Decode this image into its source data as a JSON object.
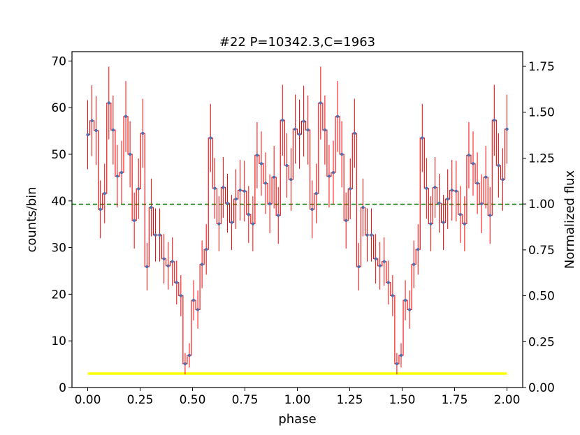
{
  "chart_data": {
    "type": "line",
    "title": "#22 P=10342.3,C=1963",
    "xlabel": "phase",
    "ylabel": "counts/bin",
    "y2label": "Normalized flux",
    "xlim": [
      -0.075,
      2.075
    ],
    "ylim": [
      0,
      72
    ],
    "y2lim": [
      0,
      1.83
    ],
    "xticks": [
      "0.00",
      "0.25",
      "0.50",
      "0.75",
      "1.00",
      "1.25",
      "1.50",
      "1.75",
      "2.00"
    ],
    "yticks": [
      "0",
      "10",
      "20",
      "30",
      "40",
      "50",
      "60",
      "70"
    ],
    "y2ticks": [
      "0.00",
      "0.25",
      "0.50",
      "0.75",
      "1.00",
      "1.25",
      "1.50",
      "1.75"
    ],
    "grid": false,
    "legend": "none",
    "mean_level": 39.3,
    "background_level": 3.0,
    "colors": {
      "step": "#ff0000",
      "errorbar": "#ff0000",
      "points": "#4c72b0",
      "mean_line": "#008000",
      "background_line": "#ffff00"
    },
    "series": [
      {
        "values": [
          54.2,
          57.2,
          55.1,
          38.2,
          41.6,
          61.0,
          55.2,
          45.3,
          46.1,
          58.1,
          50.0,
          35.8,
          42.6,
          54.5,
          25.9,
          38.6,
          32.7,
          32.7,
          27.6,
          26.1,
          27.0,
          22.5,
          19.7,
          5.1,
          6.9,
          18.7,
          16.7,
          26.4,
          29.6,
          53.5,
          42.7,
          35.1,
          42.9,
          39.5,
          35.4,
          40.4,
          42.3,
          42.1,
          37.1,
          35.1,
          49.8,
          48.0,
          43.8,
          39.4,
          45.1,
          36.9,
          57.3,
          47.6,
          44.6,
          55.4,
          54.3,
          57.1,
          55.2,
          38.2,
          41.6,
          61.0,
          55.2,
          45.3,
          46.1,
          58.1,
          50.0,
          35.8,
          42.6,
          54.5,
          25.9,
          38.6,
          32.7,
          32.7,
          27.6,
          26.1,
          27.0,
          22.5,
          19.7,
          5.1,
          6.9,
          18.7,
          16.7,
          26.4,
          29.6,
          53.5,
          42.7,
          35.1,
          42.9,
          39.5,
          35.4,
          40.4,
          42.3,
          42.1,
          37.1,
          35.1,
          49.8,
          48.0,
          43.8,
          39.4,
          45.1,
          36.9,
          57.3,
          47.6,
          44.6,
          55.4
        ],
        "errors": [
          7.4,
          7.6,
          7.4,
          6.2,
          6.4,
          7.8,
          7.4,
          6.7,
          6.8,
          7.6,
          7.1,
          6.0,
          6.5,
          7.4,
          5.1,
          6.2,
          5.7,
          5.7,
          5.3,
          5.1,
          5.2,
          4.7,
          4.4,
          2.3,
          2.6,
          4.3,
          4.1,
          5.1,
          5.4,
          7.3,
          6.5,
          5.9,
          6.5,
          6.3,
          5.9,
          6.4,
          6.5,
          6.5,
          6.1,
          5.9,
          7.1,
          6.9,
          6.6,
          6.3,
          6.7,
          6.1,
          7.6,
          6.9,
          6.7,
          7.4,
          7.4,
          7.6,
          7.4,
          6.2,
          6.4,
          7.8,
          7.4,
          6.7,
          6.8,
          7.6,
          7.1,
          6.0,
          6.5,
          7.4,
          5.1,
          6.2,
          5.7,
          5.7,
          5.3,
          5.1,
          5.2,
          4.7,
          4.4,
          2.3,
          2.6,
          4.3,
          4.1,
          5.1,
          5.4,
          7.3,
          6.5,
          5.9,
          6.5,
          6.3,
          5.9,
          6.4,
          6.5,
          6.5,
          6.1,
          5.9,
          7.1,
          6.9,
          6.6,
          6.3,
          6.7,
          6.1,
          7.6,
          6.9,
          6.7,
          7.4
        ]
      }
    ]
  }
}
